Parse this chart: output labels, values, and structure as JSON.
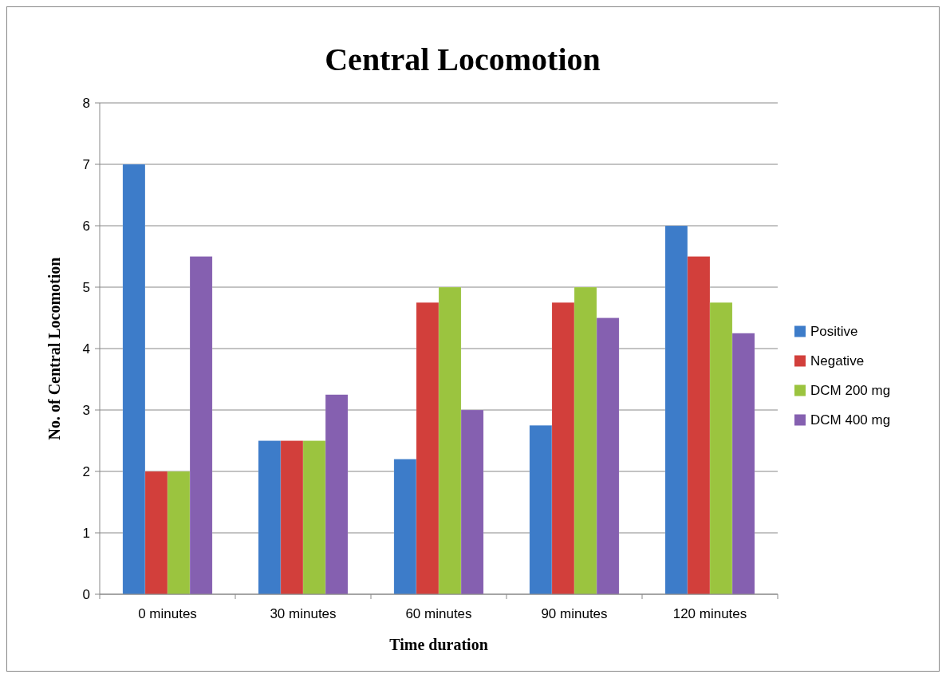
{
  "chart_data": {
    "type": "bar",
    "title": "Central Locomotion",
    "xlabel": "Time duration",
    "ylabel": "No. of Central Locomotion",
    "categories": [
      "0 minutes",
      "30 minutes",
      "60 minutes",
      "90 minutes",
      "120 minutes"
    ],
    "series": [
      {
        "name": "Positive",
        "color": "#3d7cc9",
        "values": [
          7,
          2.5,
          2.2,
          2.75,
          6
        ]
      },
      {
        "name": "Negative",
        "color": "#d23f3b",
        "values": [
          2,
          2.5,
          4.75,
          4.75,
          5.5
        ]
      },
      {
        "name": "DCM 200 mg",
        "color": "#9bc43f",
        "values": [
          2,
          2.5,
          5,
          5,
          4.75
        ]
      },
      {
        "name": "DCM 400 mg",
        "color": "#8560b0",
        "values": [
          5.5,
          3.25,
          3,
          4.5,
          4.25
        ]
      }
    ],
    "ylim": [
      0,
      8
    ],
    "yticks": [
      0,
      1,
      2,
      3,
      4,
      5,
      6,
      7,
      8
    ],
    "grid": "y",
    "legend": "right"
  }
}
